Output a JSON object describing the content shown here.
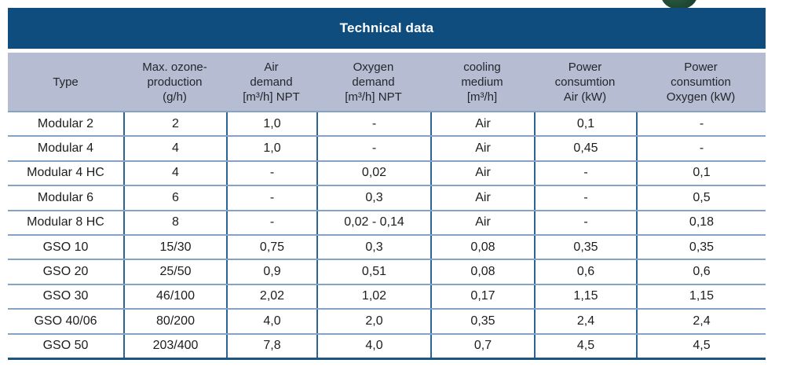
{
  "table": {
    "title": "Technical data",
    "columns": [
      {
        "name": "type",
        "lines": [
          "Type"
        ]
      },
      {
        "name": "max-ozone-production",
        "lines": [
          "Max. ozone-",
          "production",
          "(g/h)"
        ]
      },
      {
        "name": "air-demand",
        "lines": [
          "Air",
          "demand",
          "[m³/h] NPT"
        ]
      },
      {
        "name": "oxygen-demand",
        "lines": [
          "Oxygen",
          "demand",
          "[m³/h] NPT"
        ]
      },
      {
        "name": "cooling-medium",
        "lines": [
          "cooling",
          "medium",
          "[m³/h]"
        ]
      },
      {
        "name": "power-consumtion-air",
        "lines": [
          "Power",
          "consumtion",
          "Air (kW)"
        ]
      },
      {
        "name": "power-consumtion-oxygen",
        "lines": [
          "Power",
          "consumtion",
          "Oxygen (kW)"
        ]
      }
    ],
    "rows": [
      [
        "Modular 2",
        "2",
        "1,0",
        "-",
        "Air",
        "0,1",
        "-"
      ],
      [
        "Modular 4",
        "4",
        "1,0",
        "-",
        "Air",
        "0,45",
        "-"
      ],
      [
        "Modular 4 HC",
        "4",
        "-",
        "0,02",
        "Air",
        "-",
        "0,1"
      ],
      [
        "Modular 6",
        "6",
        "-",
        "0,3",
        "Air",
        "-",
        "0,5"
      ],
      [
        "Modular 8 HC",
        "8",
        "-",
        "0,02 - 0,14",
        "Air",
        "-",
        "0,18"
      ],
      [
        "GSO 10",
        "15/30",
        "0,75",
        "0,3",
        "0,08",
        "0,35",
        "0,35"
      ],
      [
        "GSO 20",
        "25/50",
        "0,9",
        "0,51",
        "0,08",
        "0,6",
        "0,6"
      ],
      [
        "GSO 30",
        "46/100",
        "2,02",
        "1,02",
        "0,17",
        "1,15",
        "1,15"
      ],
      [
        "GSO 40/06",
        "80/200",
        "4,0",
        "2,0",
        "0,35",
        "2,4",
        "2,4"
      ],
      [
        "GSO 50",
        "203/400",
        "7,8",
        "4,0",
        "0,7",
        "4,5",
        "4,5"
      ]
    ]
  },
  "colors": {
    "title_background": "#0e4d7d",
    "title_text": "#ffffff",
    "header_background": "#b6bdd2",
    "row_separator_line": "#84a3c6",
    "column_divider_line": "#2a6394",
    "bottom_border_line": "#1a5680",
    "body_text": "#1d1d1f",
    "green_decoration": "#1d4a33"
  },
  "decoration": {
    "green_object": "dark-green rounded shape partially visible above top-right of title band"
  }
}
